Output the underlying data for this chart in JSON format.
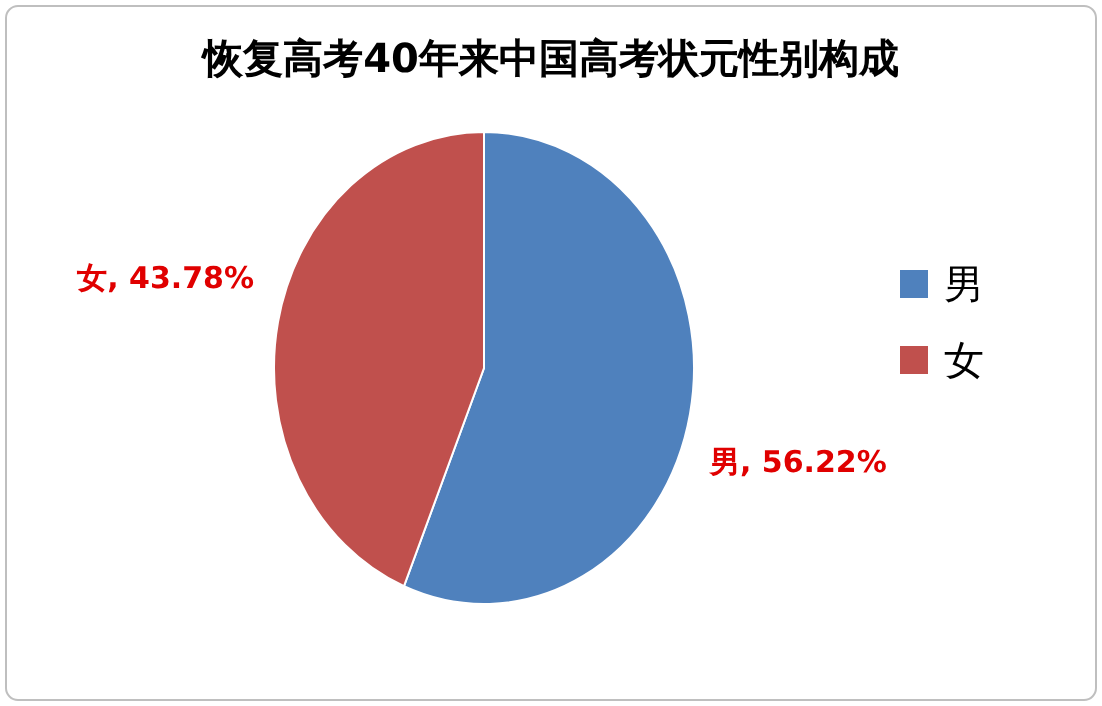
{
  "chart_data": {
    "type": "pie",
    "title": "恢复高考40年来中国高考状元性别构成",
    "categories": [
      "男",
      "女"
    ],
    "values": [
      56.22,
      43.78
    ],
    "colors": [
      "#4f81bd",
      "#c0504d"
    ],
    "value_labels": [
      "男, 56.22%",
      "女, 43.78%"
    ],
    "legend": "right"
  }
}
